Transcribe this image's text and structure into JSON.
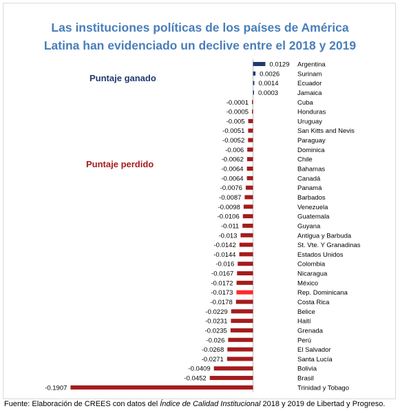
{
  "title_line1": "Las instituciones políticas de los países de América",
  "title_line2": "Latina han evidenciado un declive entre el 2018 y 2019",
  "annotation_gain": "Puntaje ganado",
  "annotation_loss": "Puntaje perdido",
  "source": {
    "prefix": "Fuente: Elaboración de CREES con datos del ",
    "italic": "Índice de Calidad Institucional",
    "suffix": " 2018 y 2019 de Libertad y Progreso."
  },
  "colors": {
    "title": "#4a7ebb",
    "gain": "#1f3a6e",
    "loss": "#a51c1c",
    "highlight": "#ff2a2a"
  },
  "chart_data": {
    "type": "bar",
    "orientation": "horizontal",
    "categories": [
      "Argentina",
      "Surinam",
      "Ecuador",
      "Jamaica",
      "Cuba",
      "Honduras",
      "Uruguay",
      "San Kitts and Nevis",
      "Paraguay",
      "Dominica",
      "Chile",
      "Bahamas",
      "Canadá",
      "Panamá",
      "Barbados",
      "Venezuela",
      "Guatemala",
      "Guyana",
      "Antigua y Barbuda",
      "St. Vte. Y Granadinas",
      "Estados Unidos",
      "Colombia",
      "Nicaragua",
      "México",
      "Rep. Dominicana",
      "Costa Rica",
      "Belice",
      "Haití",
      "Grenada",
      "Perú",
      "El Salvador",
      "Santa Lucía",
      "Bolivia",
      "Brasil",
      "Trinidad y Tobago"
    ],
    "values": [
      0.0129,
      0.0026,
      0.0014,
      0.0003,
      -0.0001,
      -0.0005,
      -0.005,
      -0.0051,
      -0.0052,
      -0.006,
      -0.0062,
      -0.0064,
      -0.0064,
      -0.0076,
      -0.0087,
      -0.0098,
      -0.0106,
      -0.011,
      -0.013,
      -0.0142,
      -0.0144,
      -0.016,
      -0.0167,
      -0.0172,
      -0.0173,
      -0.0178,
      -0.0229,
      -0.0231,
      -0.0235,
      -0.026,
      -0.0268,
      -0.0271,
      -0.0409,
      -0.0452,
      -0.1907
    ],
    "value_labels": [
      "0.0129",
      "0.0026",
      "0.0014",
      "0.0003",
      "-0.0001",
      "-0.0005",
      "-0.005",
      "-0.0051",
      "-0.0052",
      "-0.006",
      "-0.0062",
      "-0.0064",
      "-0.0064",
      "-0.0076",
      "-0.0087",
      "-0.0098",
      "-0.0106",
      "-0.011",
      "-0.013",
      "-0.0142",
      "-0.0144",
      "-0.016",
      "-0.0167",
      "-0.0172",
      "-0.0173",
      "-0.0178",
      "-0.0229",
      "-0.0231",
      "-0.0235",
      "-0.026",
      "-0.0268",
      "-0.0271",
      "-0.0409",
      "-0.0452",
      "-0.1907"
    ],
    "highlight_category": "Rep. Dominicana",
    "grid": false,
    "legend": "none"
  }
}
